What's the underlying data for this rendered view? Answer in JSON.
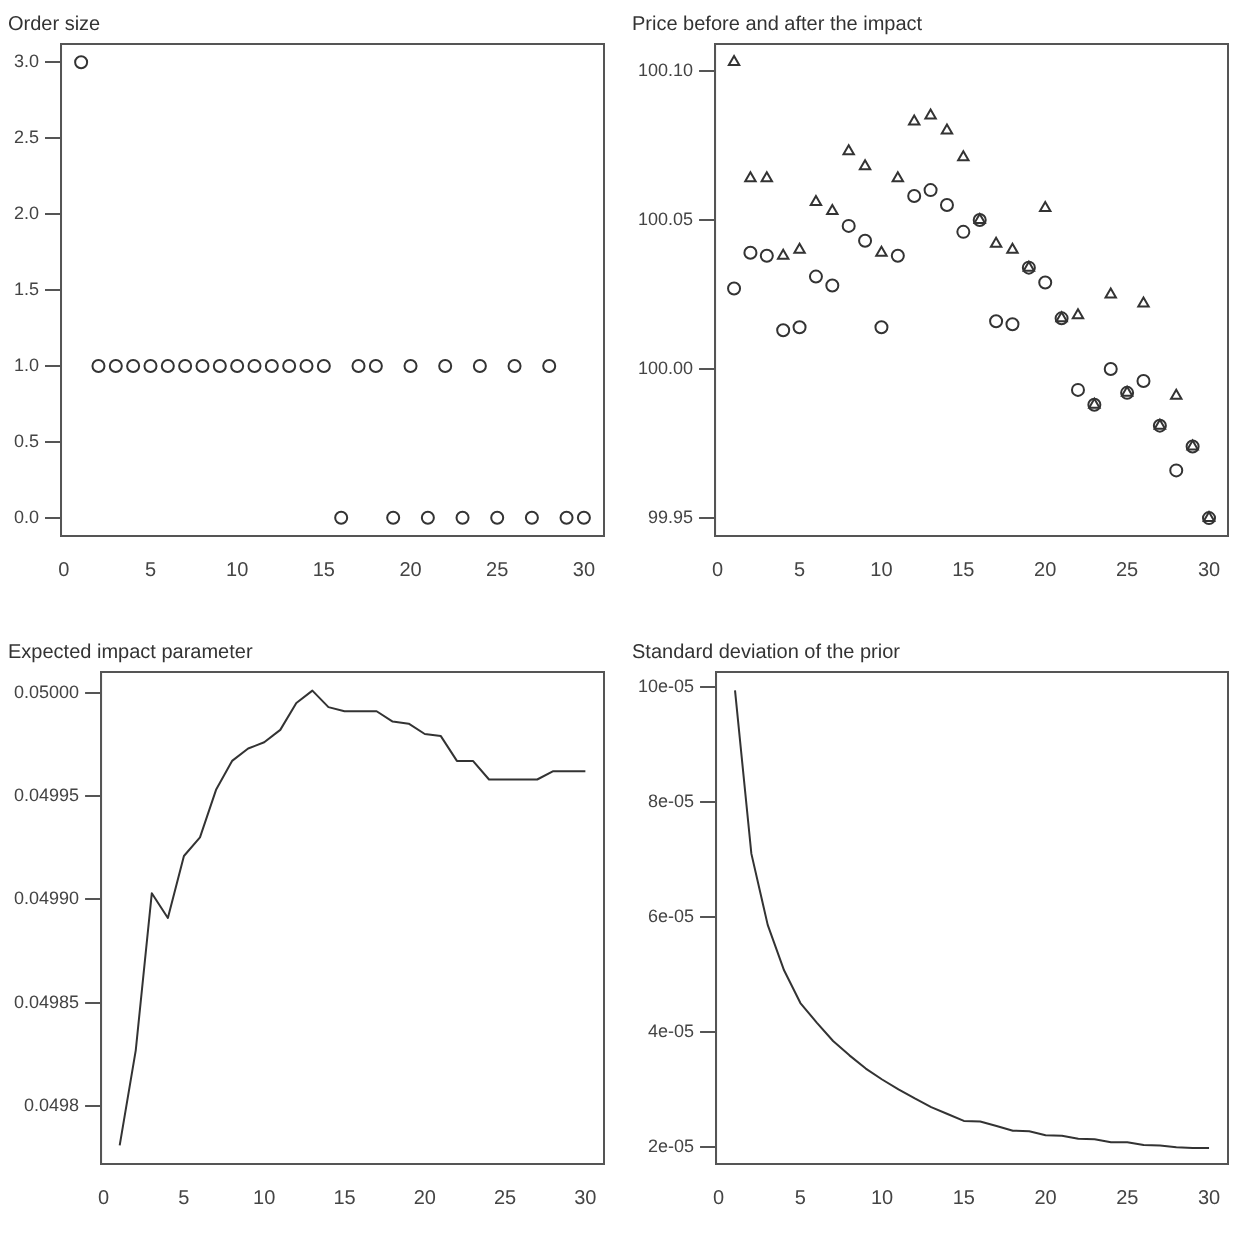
{
  "chart_data": [
    {
      "type": "scatter",
      "title": "Order size",
      "x": [
        1,
        2,
        3,
        4,
        5,
        6,
        7,
        8,
        9,
        10,
        11,
        12,
        13,
        14,
        15,
        16,
        17,
        18,
        19,
        20,
        21,
        22,
        23,
        24,
        25,
        26,
        27,
        28,
        29,
        30
      ],
      "series": [
        {
          "color": "#333333",
          "marker": "circle",
          "values": [
            3,
            1,
            1,
            1,
            1,
            1,
            1,
            1,
            1,
            1,
            1,
            1,
            1,
            1,
            1,
            0,
            1,
            1,
            0,
            1,
            0,
            1,
            0,
            1,
            0,
            1,
            0,
            1,
            0,
            0
          ]
        }
      ],
      "xlim": [
        -0.16,
        31.16
      ],
      "xticks": [
        0,
        5,
        10,
        15,
        20,
        25,
        30
      ],
      "ylim": [
        -0.12,
        3.12
      ],
      "yticks": [
        {
          "value": 0,
          "label": "0.0"
        },
        {
          "value": 0.5,
          "label": "0.5"
        },
        {
          "value": 1,
          "label": "1.0"
        },
        {
          "value": 1.5,
          "label": "1.5"
        },
        {
          "value": 2,
          "label": "2.0"
        },
        {
          "value": 2.5,
          "label": "2.5"
        },
        {
          "value": 3,
          "label": "3.0"
        }
      ],
      "grid": false,
      "legend": false
    },
    {
      "type": "scatter",
      "title": "Price before and after the impact",
      "x": [
        1,
        2,
        3,
        4,
        5,
        6,
        7,
        8,
        9,
        10,
        11,
        12,
        13,
        14,
        15,
        16,
        17,
        18,
        19,
        20,
        21,
        22,
        23,
        24,
        25,
        26,
        27,
        28,
        29,
        30
      ],
      "series": [
        {
          "color": "#333333",
          "marker": "triangle",
          "values": [
            100.103,
            100.064,
            100.064,
            100.038,
            100.04,
            100.056,
            100.053,
            100.073,
            100.068,
            100.039,
            100.064,
            100.083,
            100.085,
            100.08,
            100.071,
            100.05,
            100.042,
            100.04,
            100.034,
            100.054,
            100.017,
            100.018,
            99.988,
            100.025,
            99.992,
            100.022,
            99.981,
            99.991,
            99.974,
            99.95
          ]
        },
        {
          "color": "#333333",
          "marker": "circle",
          "values": [
            100.027,
            100.039,
            100.038,
            100.013,
            100.014,
            100.031,
            100.028,
            100.048,
            100.043,
            100.014,
            100.038,
            100.058,
            100.06,
            100.055,
            100.046,
            100.05,
            100.016,
            100.015,
            100.034,
            100.029,
            100.017,
            99.993,
            99.988,
            100,
            99.992,
            99.996,
            99.981,
            99.966,
            99.974,
            99.95
          ]
        }
      ],
      "xlim": [
        -0.16,
        31.16
      ],
      "xticks": [
        0,
        5,
        10,
        15,
        20,
        25,
        30
      ],
      "ylim": [
        99.944,
        100.109
      ],
      "yticks": [
        {
          "value": 99.95,
          "label": "99.95"
        },
        {
          "value": 100,
          "label": "100.00"
        },
        {
          "value": 100.05,
          "label": "100.05"
        },
        {
          "value": 100.1,
          "label": "100.10"
        }
      ],
      "grid": false,
      "legend": false
    },
    {
      "type": "line",
      "title": "Expected impact parameter",
      "x": [
        1,
        2,
        3,
        4,
        5,
        6,
        7,
        8,
        9,
        10,
        11,
        12,
        13,
        14,
        15,
        16,
        17,
        18,
        19,
        20,
        21,
        22,
        23,
        24,
        25,
        26,
        27,
        28,
        29,
        30
      ],
      "series": [
        {
          "color": "#333333",
          "values": [
            0.049781,
            0.049827,
            0.049903,
            0.049891,
            0.049921,
            0.04993,
            0.049953,
            0.049967,
            0.049973,
            0.049976,
            0.049982,
            0.049995,
            0.050001,
            0.049993,
            0.049991,
            0.049991,
            0.049991,
            0.049986,
            0.049985,
            0.04998,
            0.049979,
            0.049967,
            0.049967,
            0.049958,
            0.049958,
            0.049958,
            0.049958,
            0.049962,
            0.049962,
            0.049962
          ]
        }
      ],
      "xlim": [
        -0.16,
        31.16
      ],
      "xticks": [
        0,
        5,
        10,
        15,
        20,
        25,
        30
      ],
      "ylim": [
        0.049772,
        0.05001
      ],
      "yticks": [
        {
          "value": 0.0498,
          "label": "0.0498"
        },
        {
          "value": 0.04985,
          "label": "0.04985"
        },
        {
          "value": 0.0499,
          "label": "0.04990"
        },
        {
          "value": 0.04995,
          "label": "0.04995"
        },
        {
          "value": 0.05,
          "label": "0.05000"
        }
      ],
      "grid": false,
      "legend": false,
      "marker": "none",
      "line_style": "solid"
    },
    {
      "type": "line",
      "title": "Standard deviation of the prior",
      "x": [
        1,
        2,
        3,
        4,
        5,
        6,
        7,
        8,
        9,
        10,
        11,
        12,
        13,
        14,
        15,
        16,
        17,
        18,
        19,
        20,
        21,
        22,
        23,
        24,
        25,
        26,
        27,
        28,
        29,
        30
      ],
      "series": [
        {
          "color": "#333333",
          "values": [
            9.94e-05,
            7.1e-05,
            5.86e-05,
            5.07e-05,
            4.5e-05,
            4.16e-05,
            3.84e-05,
            3.59e-05,
            3.36e-05,
            3.17e-05,
            3e-05,
            2.84e-05,
            2.69e-05,
            2.57e-05,
            2.45e-05,
            2.44e-05,
            2.36e-05,
            2.28e-05,
            2.27e-05,
            2.2e-05,
            2.19e-05,
            2.14e-05,
            2.13e-05,
            2.08e-05,
            2.08e-05,
            2.03e-05,
            2.02e-05,
            1.99e-05,
            1.98e-05,
            1.98e-05
          ]
        }
      ],
      "xlim": [
        -0.16,
        31.16
      ],
      "xticks": [
        0,
        5,
        10,
        15,
        20,
        25,
        30
      ],
      "ylim": [
        1.7e-05,
        0.0001026
      ],
      "yticks": [
        {
          "value": 2e-05,
          "label": "2e-05"
        },
        {
          "value": 4e-05,
          "label": "4e-05"
        },
        {
          "value": 6e-05,
          "label": "6e-05"
        },
        {
          "value": 8e-05,
          "label": "8e-05"
        },
        {
          "value": 0.0001,
          "label": "10e-05"
        }
      ],
      "grid": false,
      "legend": false,
      "marker": "none",
      "line_style": "solid"
    }
  ]
}
